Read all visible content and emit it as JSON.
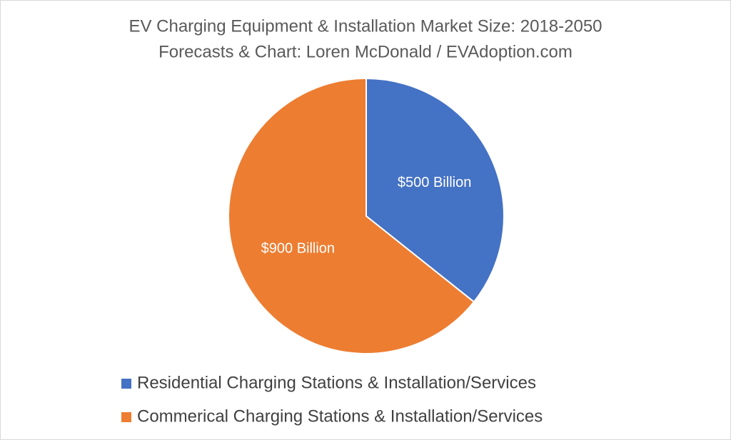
{
  "chart_data": {
    "type": "pie",
    "title": "EV Charging Equipment & Installation Market Size: 2018-2050",
    "subtitle": "Forecasts & Chart: Loren McDonald / EVAdoption.com",
    "categories": [
      "Residential Charging Stations & Installation/Services",
      "Commerical Charging Stations & Installation/Services"
    ],
    "values": [
      500,
      900
    ],
    "value_labels": [
      "$500 Billion",
      "$900 Billion"
    ],
    "colors": [
      "#4472c4",
      "#ed7d31"
    ]
  }
}
